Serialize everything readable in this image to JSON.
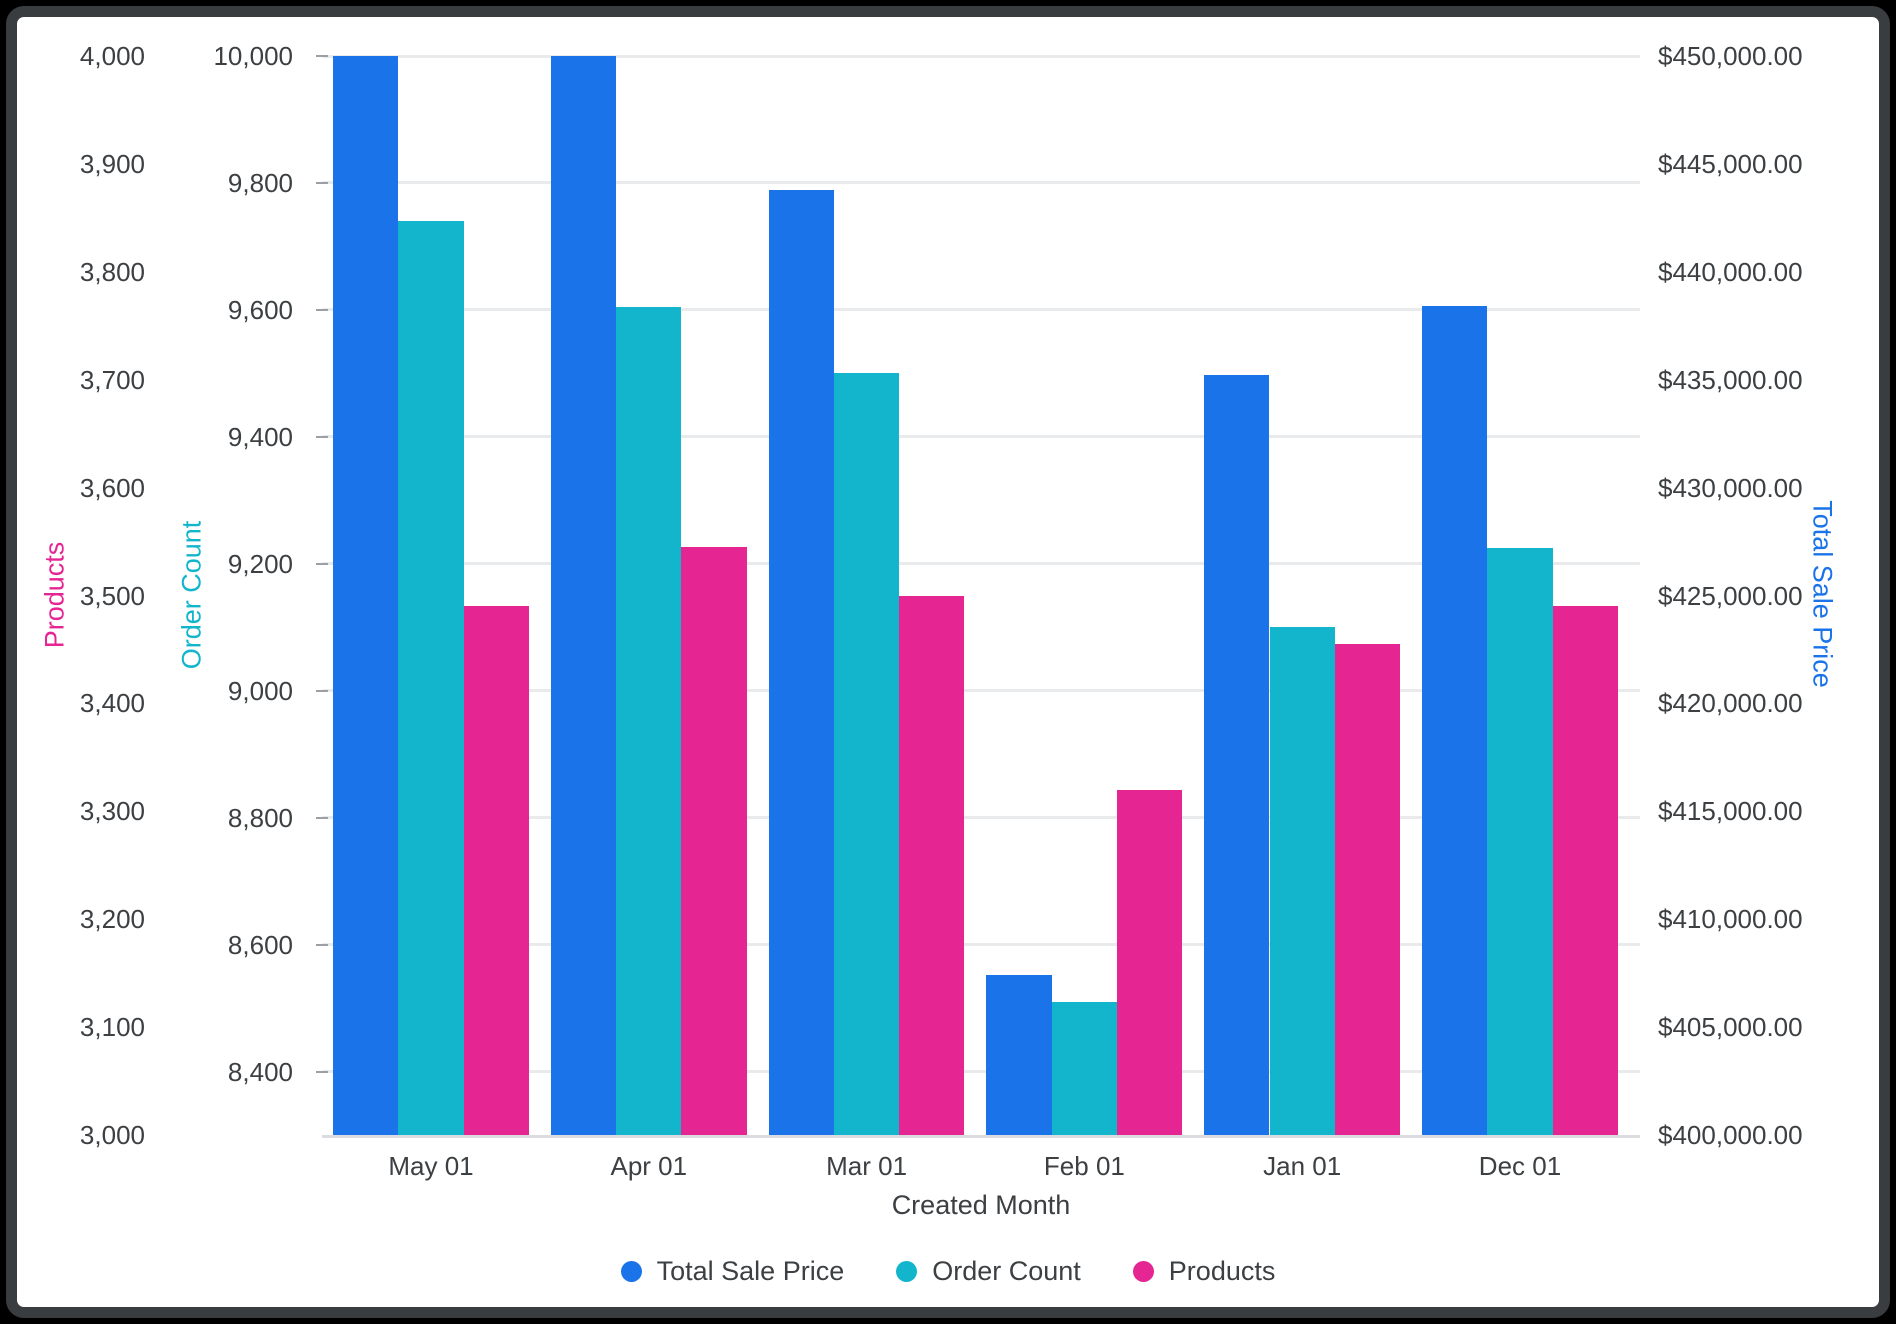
{
  "chart_data": {
    "type": "bar",
    "title": "",
    "categories": [
      "May 01",
      "Apr 01",
      "Mar 01",
      "Feb 01",
      "Jan 01",
      "Dec 01"
    ],
    "xlabel": "Created Month",
    "grid": "horizontal gridlines aligned to Order Count ticks",
    "legend_position": "bottom-center",
    "series": [
      {
        "name": "Total Sale Price",
        "axis": "sale",
        "color": "#1a73e8",
        "values": [
          450000,
          450000,
          443800,
          407400,
          435200,
          438400
        ]
      },
      {
        "name": "Order Count",
        "axis": "order",
        "color": "#12b5cb",
        "values": [
          9740,
          9605,
          9500,
          8510,
          9100,
          9225
        ]
      },
      {
        "name": "Products",
        "axis": "products",
        "color": "#e52592",
        "values": [
          3490,
          3545,
          3500,
          3320,
          3455,
          3490
        ]
      }
    ],
    "axes": {
      "products": {
        "title": "Products",
        "color": "#e52592",
        "side": "outer-left",
        "min": 3000,
        "max": 4000,
        "tick_values": [
          4000,
          3900,
          3800,
          3700,
          3600,
          3500,
          3400,
          3300,
          3200,
          3100,
          3000
        ],
        "tick_labels": [
          "4,000",
          "3,900",
          "3,800",
          "3,700",
          "3,600",
          "3,500",
          "3,400",
          "3,300",
          "3,200",
          "3,100",
          "3,000"
        ]
      },
      "order": {
        "title": "Order Count",
        "color": "#12b5cb",
        "side": "inner-left",
        "min": 8300,
        "max": 10000,
        "tick_values": [
          10000,
          9800,
          9600,
          9400,
          9200,
          9000,
          8800,
          8600,
          8400
        ],
        "tick_labels": [
          "10,000",
          "9,800",
          "9,600",
          "9,400",
          "9,200",
          "9,000",
          "8,800",
          "8,600",
          "8,400"
        ]
      },
      "sale": {
        "title": "Total Sale Price",
        "color": "#1a73e8",
        "side": "right",
        "min": 400000,
        "max": 450000,
        "tick_values": [
          450000,
          445000,
          440000,
          435000,
          430000,
          425000,
          420000,
          415000,
          410000,
          405000,
          400000
        ],
        "tick_labels": [
          "$450,000.00",
          "$445,000.00",
          "$440,000.00",
          "$435,000.00",
          "$430,000.00",
          "$425,000.00",
          "$420,000.00",
          "$415,000.00",
          "$410,000.00",
          "$405,000.00",
          "$400,000.00"
        ]
      }
    },
    "text_color": "#3c4043",
    "gridline_color": "#e9eaeb"
  }
}
